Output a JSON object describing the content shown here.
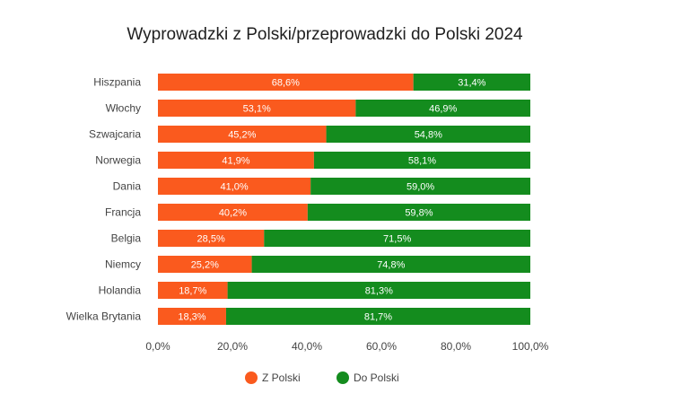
{
  "chart_data": {
    "type": "bar",
    "orientation": "horizontal",
    "stacked": true,
    "title": "Wyprowadzki z Polski/przeprowadzki do Polski 2024",
    "categories": [
      "Hiszpania",
      "Włochy",
      "Szwajcaria",
      "Norwegia",
      "Dania",
      "Francja",
      "Belgia",
      "Niemcy",
      "Holandia",
      "Wielka Brytania"
    ],
    "series": [
      {
        "name": "Z Polski",
        "color": "#fa5a1e",
        "values": [
          68.6,
          53.1,
          45.2,
          41.9,
          41.0,
          40.2,
          28.5,
          25.2,
          18.7,
          18.3
        ],
        "labels": [
          "68,6%",
          "53,1%",
          "45,2%",
          "41,9%",
          "41,0%",
          "40,2%",
          "28,5%",
          "25,2%",
          "18,7%",
          "18,3%"
        ]
      },
      {
        "name": "Do Polski",
        "color": "#148c1e",
        "values": [
          31.4,
          46.9,
          54.8,
          58.1,
          59.0,
          59.8,
          71.5,
          74.8,
          81.3,
          81.7
        ],
        "labels": [
          "31,4%",
          "46,9%",
          "54,8%",
          "58,1%",
          "59,0%",
          "59,8%",
          "71,5%",
          "74,8%",
          "81,3%",
          "81,7%"
        ]
      }
    ],
    "xlim": [
      0,
      100
    ],
    "xticks": [
      0,
      20,
      40,
      60,
      80,
      100
    ],
    "xtick_labels": [
      "0,0%",
      "20,0%",
      "40,0%",
      "60,0%",
      "80,0%",
      "100,0%"
    ],
    "grid": false,
    "legend": "bottom-center"
  }
}
